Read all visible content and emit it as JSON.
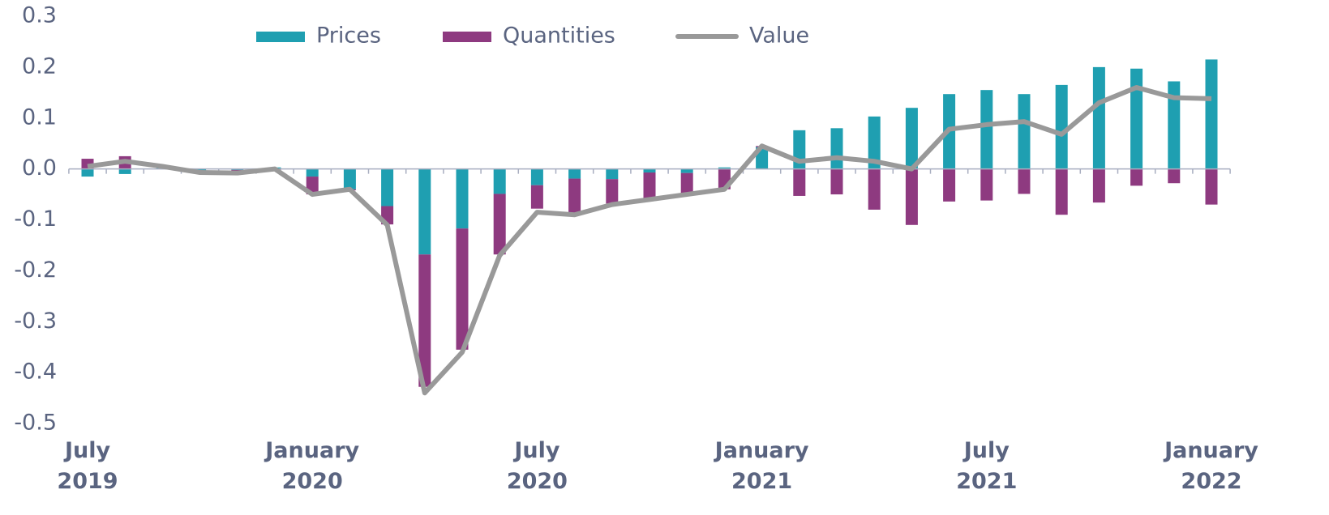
{
  "chart_data": {
    "type": "bar",
    "categories": [
      "July 2019",
      null,
      null,
      null,
      null,
      null,
      "January 2020",
      null,
      null,
      null,
      null,
      null,
      "July 2020",
      null,
      null,
      null,
      null,
      null,
      "January 2021",
      null,
      null,
      null,
      null,
      null,
      "July 2021",
      null,
      null,
      null,
      null,
      null,
      "January 2022"
    ],
    "series": [
      {
        "name": "Prices",
        "type": "bar",
        "color": "#1f9fb1",
        "values": [
          -0.015,
          -0.01,
          0.002,
          -0.005,
          -0.002,
          0.003,
          -0.015,
          -0.04,
          -0.073,
          -0.168,
          -0.117,
          -0.049,
          -0.032,
          -0.019,
          -0.02,
          -0.007,
          -0.008,
          0.003,
          0.043,
          0.076,
          0.08,
          0.103,
          0.12,
          0.147,
          0.155,
          0.147,
          0.165,
          0.2,
          0.197,
          0.172,
          0.215
        ]
      },
      {
        "name": "Quantities",
        "type": "bar",
        "color": "#8e3a80",
        "values": [
          0.02,
          0.025,
          0.003,
          -0.003,
          -0.008,
          -0.002,
          -0.035,
          -0.002,
          -0.036,
          -0.26,
          -0.238,
          -0.119,
          -0.046,
          -0.068,
          -0.048,
          -0.051,
          -0.041,
          -0.04,
          0.002,
          -0.053,
          -0.05,
          -0.08,
          -0.11,
          -0.064,
          -0.062,
          -0.049,
          -0.09,
          -0.066,
          -0.033,
          -0.028,
          -0.07
        ]
      },
      {
        "name": "Value",
        "type": "line",
        "color": "#999999",
        "values": [
          0.005,
          0.015,
          0.005,
          -0.007,
          -0.008,
          0.0,
          -0.05,
          -0.04,
          -0.11,
          -0.44,
          -0.36,
          -0.17,
          -0.085,
          -0.09,
          -0.07,
          -0.06,
          -0.05,
          -0.04,
          0.045,
          0.015,
          0.022,
          0.015,
          0.0,
          0.078,
          0.087,
          0.093,
          0.068,
          0.13,
          0.16,
          0.14,
          0.138
        ]
      }
    ],
    "ylim": [
      -0.5,
      0.3
    ],
    "yticks": [
      0.3,
      0.2,
      0.1,
      {
        "value": 0,
        "label": "0.0"
      },
      -0.1,
      -0.2,
      -0.3,
      -0.4,
      -0.5
    ],
    "legend": "top"
  }
}
